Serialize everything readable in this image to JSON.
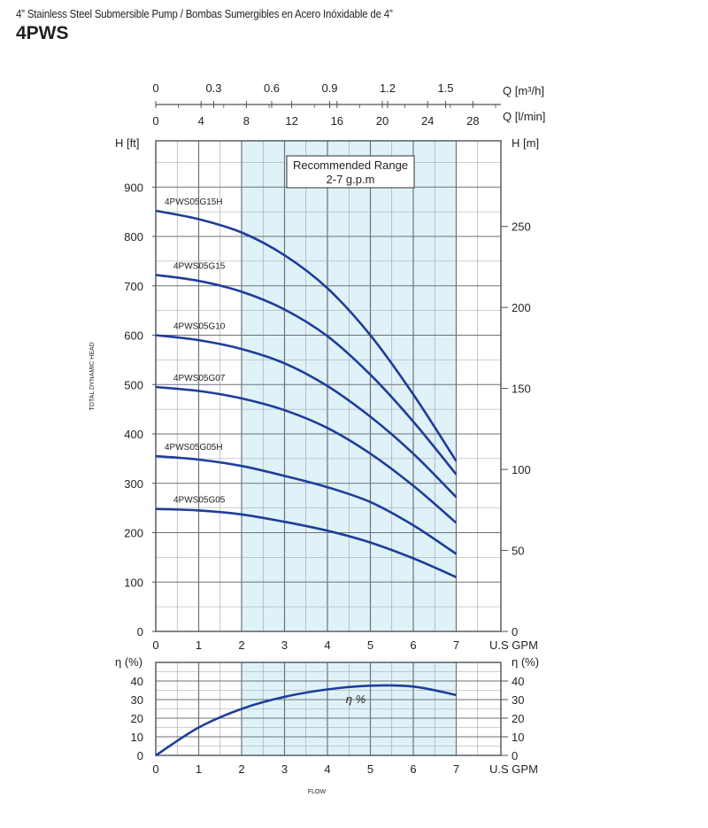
{
  "header": {
    "subtitle": "4” Stainless Steel Submersible Pump / Bombas Sumergibles en Acero Inóxidable de 4”",
    "title": "4PWS"
  },
  "chart_data": [
    {
      "type": "line",
      "name": "head-curves",
      "x_label": "U.S GPM",
      "x_ticks": [
        0,
        1,
        2,
        3,
        4,
        5,
        6,
        7
      ],
      "xlim": [
        0,
        8
      ],
      "y_label_left": "H [ft]",
      "y_ticks_left": [
        0,
        100,
        200,
        300,
        400,
        500,
        600,
        700,
        800,
        900
      ],
      "ylim": [
        0,
        1000
      ],
      "y_label_right": "H [m]",
      "y_ticks_right": [
        0,
        50,
        100,
        150,
        200,
        250
      ],
      "y_axis_title": "TOTAL DYNAMIC HEAD",
      "top_axis_m3h": {
        "label": "Q [m³/h]",
        "ticks": [
          "0",
          "0.3",
          "0.6",
          "0.9",
          "1.2",
          "1.5"
        ]
      },
      "top_axis_lmin": {
        "label": "Q [l/min]",
        "ticks": [
          "0",
          "4",
          "8",
          "12",
          "16",
          "20",
          "24",
          "28"
        ]
      },
      "recommended_range": {
        "label": "Recommended Range",
        "sub": "2-7 g.p.m",
        "from": 2,
        "to": 7
      },
      "x": [
        0,
        1,
        2,
        3,
        4,
        5,
        6,
        7
      ],
      "series": [
        {
          "name": "4PWS05G15H",
          "values": [
            852,
            835,
            808,
            762,
            695,
            600,
            480,
            345
          ]
        },
        {
          "name": "4PWS05G15",
          "values": [
            722,
            710,
            688,
            652,
            598,
            520,
            425,
            318
          ]
        },
        {
          "name": "4PWS05G10",
          "values": [
            600,
            590,
            572,
            543,
            497,
            435,
            360,
            272
          ]
        },
        {
          "name": "4PWS05G07",
          "values": [
            495,
            487,
            472,
            448,
            412,
            360,
            295,
            220
          ]
        },
        {
          "name": "4PWS05G05H",
          "values": [
            355,
            348,
            335,
            315,
            292,
            262,
            215,
            157
          ]
        },
        {
          "name": "4PWS05G05",
          "values": [
            248,
            245,
            237,
            222,
            204,
            180,
            148,
            110
          ]
        }
      ],
      "line_color": "#1f3d99",
      "band_color": "#dff2f8"
    },
    {
      "type": "line",
      "name": "efficiency-curve",
      "x_label": "U.S GPM",
      "x_ticks": [
        0,
        1,
        2,
        3,
        4,
        5,
        6,
        7
      ],
      "y_label_left": "η (%)",
      "y_label_right": "η (%)",
      "y_ticks": [
        0,
        10,
        20,
        30,
        40
      ],
      "ylim": [
        0,
        45
      ],
      "x": [
        0,
        1,
        2,
        3,
        4,
        5,
        6,
        7
      ],
      "series": [
        {
          "name": "η %",
          "values": [
            0,
            15,
            25,
            31.5,
            35.5,
            37.5,
            37,
            32.5
          ]
        }
      ],
      "x_title": "FLOW"
    }
  ]
}
